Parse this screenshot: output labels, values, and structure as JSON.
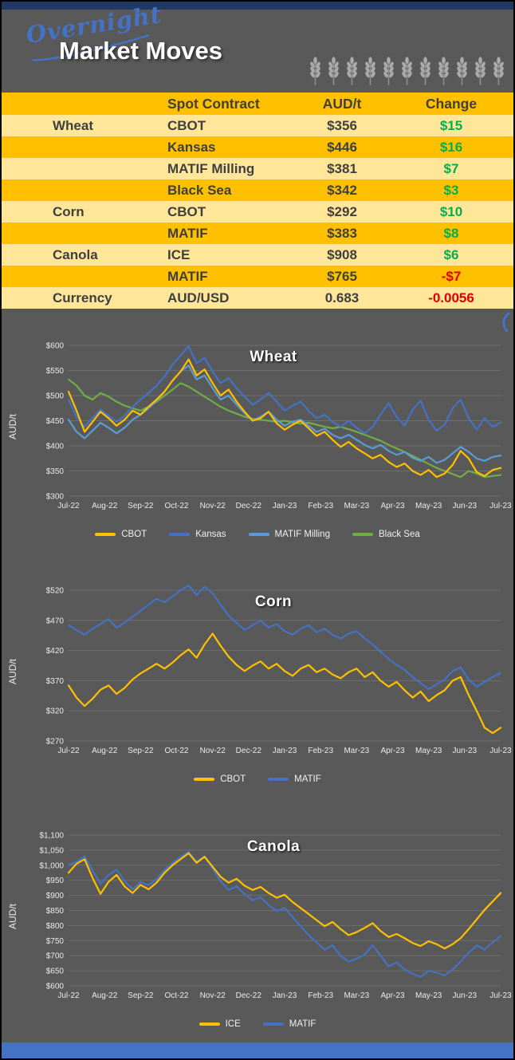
{
  "header": {
    "script_word": "Overnight",
    "title": "Market Moves",
    "strip_color": "#1F3864",
    "wheat_icon_count": 11
  },
  "table": {
    "columns": {
      "category": "",
      "contract": "Spot Contract",
      "price": "AUD/t",
      "change": "Change"
    },
    "colors": {
      "up": "#00B050",
      "down": "#E10000",
      "row_gold": "#FFC000",
      "row_light": "#FFE699"
    },
    "rows": [
      {
        "category": "Wheat",
        "contract": "CBOT",
        "price": "$356",
        "change": "$15",
        "direction": "up"
      },
      {
        "category": "",
        "contract": "Kansas",
        "price": "$446",
        "change": "$16",
        "direction": "up"
      },
      {
        "category": "",
        "contract": "MATIF Milling",
        "price": "$381",
        "change": "$7",
        "direction": "up"
      },
      {
        "category": "",
        "contract": "Black Sea",
        "price": "$342",
        "change": "$3",
        "direction": "up"
      },
      {
        "category": "Corn",
        "contract": "CBOT",
        "price": "$292",
        "change": "$10",
        "direction": "up"
      },
      {
        "category": "",
        "contract": "MATIF",
        "price": "$383",
        "change": "$8",
        "direction": "up"
      },
      {
        "category": "Canola",
        "contract": "ICE",
        "price": "$908",
        "change": "$6",
        "direction": "up"
      },
      {
        "category": "",
        "contract": "MATIF",
        "price": "$765",
        "change": "-$7",
        "direction": "down"
      },
      {
        "category": "Currency",
        "contract": "AUD/USD",
        "price": "0.683",
        "change": "-0.0056",
        "direction": "down"
      }
    ]
  },
  "chart_data": [
    {
      "type": "line",
      "title": "Wheat",
      "ylabel": "AUD/t",
      "ylim": [
        300,
        600
      ],
      "yticks": [
        300,
        350,
        400,
        450,
        500,
        550,
        600
      ],
      "ytick_labels": [
        "$300",
        "$350",
        "$400",
        "$450",
        "$500",
        "$550",
        "$600"
      ],
      "x_labels": [
        "Jul-22",
        "Aug-22",
        "Sep-22",
        "Oct-22",
        "Nov-22",
        "Dec-22",
        "Jan-23",
        "Feb-23",
        "Mar-23",
        "Apr-23",
        "May-23",
        "Jun-23",
        "Jul-23"
      ],
      "grid": true,
      "legend_position": "bottom",
      "series": [
        {
          "name": "CBOT",
          "color": "#FFC000",
          "values": [
            508,
            470,
            428,
            448,
            468,
            455,
            440,
            452,
            470,
            462,
            478,
            492,
            508,
            530,
            548,
            572,
            540,
            552,
            525,
            500,
            512,
            488,
            468,
            450,
            455,
            468,
            445,
            432,
            442,
            450,
            435,
            420,
            428,
            412,
            398,
            408,
            395,
            385,
            375,
            382,
            368,
            358,
            365,
            350,
            342,
            352,
            338,
            345,
            362,
            390,
            375,
            348,
            340,
            352,
            356
          ]
        },
        {
          "name": "Kansas",
          "color": "#4472C4",
          "values": [
            492,
            458,
            438,
            456,
            472,
            460,
            448,
            460,
            478,
            492,
            505,
            520,
            538,
            562,
            580,
            598,
            565,
            575,
            548,
            525,
            535,
            515,
            498,
            482,
            492,
            505,
            488,
            470,
            480,
            488,
            470,
            455,
            462,
            448,
            438,
            450,
            436,
            425,
            438,
            462,
            485,
            458,
            440,
            472,
            490,
            452,
            430,
            442,
            475,
            492,
            455,
            432,
            455,
            438,
            446
          ]
        },
        {
          "name": "MATIF Milling",
          "color": "#5B9BD5",
          "values": [
            452,
            428,
            415,
            430,
            446,
            436,
            425,
            436,
            452,
            462,
            475,
            490,
            508,
            530,
            548,
            560,
            532,
            540,
            515,
            492,
            500,
            482,
            465,
            450,
            458,
            468,
            452,
            440,
            448,
            452,
            440,
            428,
            434,
            422,
            415,
            422,
            412,
            402,
            395,
            402,
            390,
            382,
            388,
            376,
            370,
            378,
            366,
            372,
            385,
            398,
            388,
            375,
            370,
            378,
            381
          ]
        },
        {
          "name": "Black Sea",
          "color": "#70AD47",
          "values": [
            532,
            520,
            500,
            492,
            505,
            498,
            488,
            480,
            475,
            470,
            478,
            488,
            500,
            512,
            525,
            518,
            508,
            498,
            488,
            478,
            470,
            464,
            458,
            454,
            452,
            450,
            448,
            450,
            447,
            444,
            446,
            442,
            438,
            435,
            438,
            433,
            428,
            422,
            416,
            410,
            402,
            395,
            388,
            380,
            372,
            364,
            356,
            350,
            344,
            338,
            350,
            345,
            338,
            340,
            342
          ]
        }
      ]
    },
    {
      "type": "line",
      "title": "Corn",
      "ylabel": "AUD/t",
      "ylim": [
        270,
        520
      ],
      "yticks": [
        270,
        320,
        370,
        420,
        470,
        520
      ],
      "ytick_labels": [
        "$270",
        "$320",
        "$370",
        "$420",
        "$470",
        "$520"
      ],
      "x_labels": [
        "Jul-22",
        "Aug-22",
        "Sep-22",
        "Oct-22",
        "Nov-22",
        "Dec-22",
        "Jan-23",
        "Feb-23",
        "Mar-23",
        "Apr-23",
        "May-23",
        "Jun-23",
        "Jul-23"
      ],
      "grid": true,
      "legend_position": "bottom",
      "series": [
        {
          "name": "CBOT",
          "color": "#FFC000",
          "values": [
            362,
            342,
            328,
            340,
            355,
            362,
            348,
            358,
            372,
            382,
            390,
            398,
            390,
            400,
            412,
            422,
            408,
            430,
            448,
            428,
            410,
            396,
            386,
            395,
            402,
            390,
            398,
            386,
            378,
            390,
            396,
            384,
            390,
            380,
            374,
            384,
            390,
            376,
            384,
            370,
            360,
            368,
            354,
            342,
            352,
            336,
            346,
            354,
            370,
            376,
            346,
            320,
            292,
            283,
            292
          ]
        },
        {
          "name": "MATIF",
          "color": "#4472C4",
          "values": [
            462,
            454,
            446,
            456,
            464,
            472,
            458,
            466,
            476,
            486,
            496,
            506,
            500,
            510,
            520,
            528,
            512,
            526,
            515,
            496,
            478,
            466,
            454,
            462,
            470,
            458,
            464,
            452,
            446,
            456,
            462,
            450,
            456,
            446,
            440,
            448,
            452,
            440,
            430,
            418,
            406,
            396,
            388,
            376,
            366,
            356,
            364,
            372,
            386,
            392,
            372,
            360,
            368,
            376,
            383
          ]
        }
      ]
    },
    {
      "type": "line",
      "title": "Canola",
      "ylabel": "AUD/t",
      "ylim": [
        600,
        1100
      ],
      "yticks": [
        600,
        650,
        700,
        750,
        800,
        850,
        900,
        950,
        1000,
        1050,
        1100
      ],
      "ytick_labels": [
        "$600",
        "$650",
        "$700",
        "$750",
        "$800",
        "$850",
        "$900",
        "$950",
        "$1,000",
        "$1,050",
        "$1,100"
      ],
      "x_labels": [
        "Jul-22",
        "Aug-22",
        "Sep-22",
        "Oct-22",
        "Nov-22",
        "Dec-22",
        "Jan-23",
        "Feb-23",
        "Mar-23",
        "Apr-23",
        "May-23",
        "Jun-23",
        "Jul-23"
      ],
      "grid": true,
      "legend_position": "bottom",
      "series": [
        {
          "name": "ICE",
          "color": "#FFC000",
          "values": [
            975,
            1005,
            1020,
            958,
            905,
            945,
            968,
            930,
            908,
            935,
            920,
            942,
            975,
            1000,
            1020,
            1040,
            1008,
            1028,
            995,
            962,
            942,
            955,
            932,
            918,
            928,
            908,
            892,
            902,
            878,
            858,
            838,
            818,
            798,
            812,
            788,
            768,
            778,
            792,
            808,
            782,
            762,
            772,
            758,
            742,
            732,
            748,
            738,
            724,
            738,
            758,
            788,
            820,
            852,
            880,
            908
          ]
        },
        {
          "name": "MATIF",
          "color": "#4472C4",
          "values": [
            1000,
            1012,
            1030,
            982,
            938,
            968,
            985,
            948,
            920,
            944,
            934,
            954,
            984,
            1008,
            1028,
            1045,
            1012,
            1030,
            988,
            948,
            918,
            930,
            904,
            884,
            894,
            868,
            848,
            858,
            828,
            798,
            768,
            744,
            720,
            734,
            700,
            680,
            690,
            704,
            734,
            700,
            664,
            678,
            654,
            640,
            630,
            650,
            644,
            634,
            654,
            680,
            710,
            734,
            720,
            744,
            765
          ]
        }
      ]
    }
  ],
  "footer": {
    "bar_color": "#4472C4"
  }
}
